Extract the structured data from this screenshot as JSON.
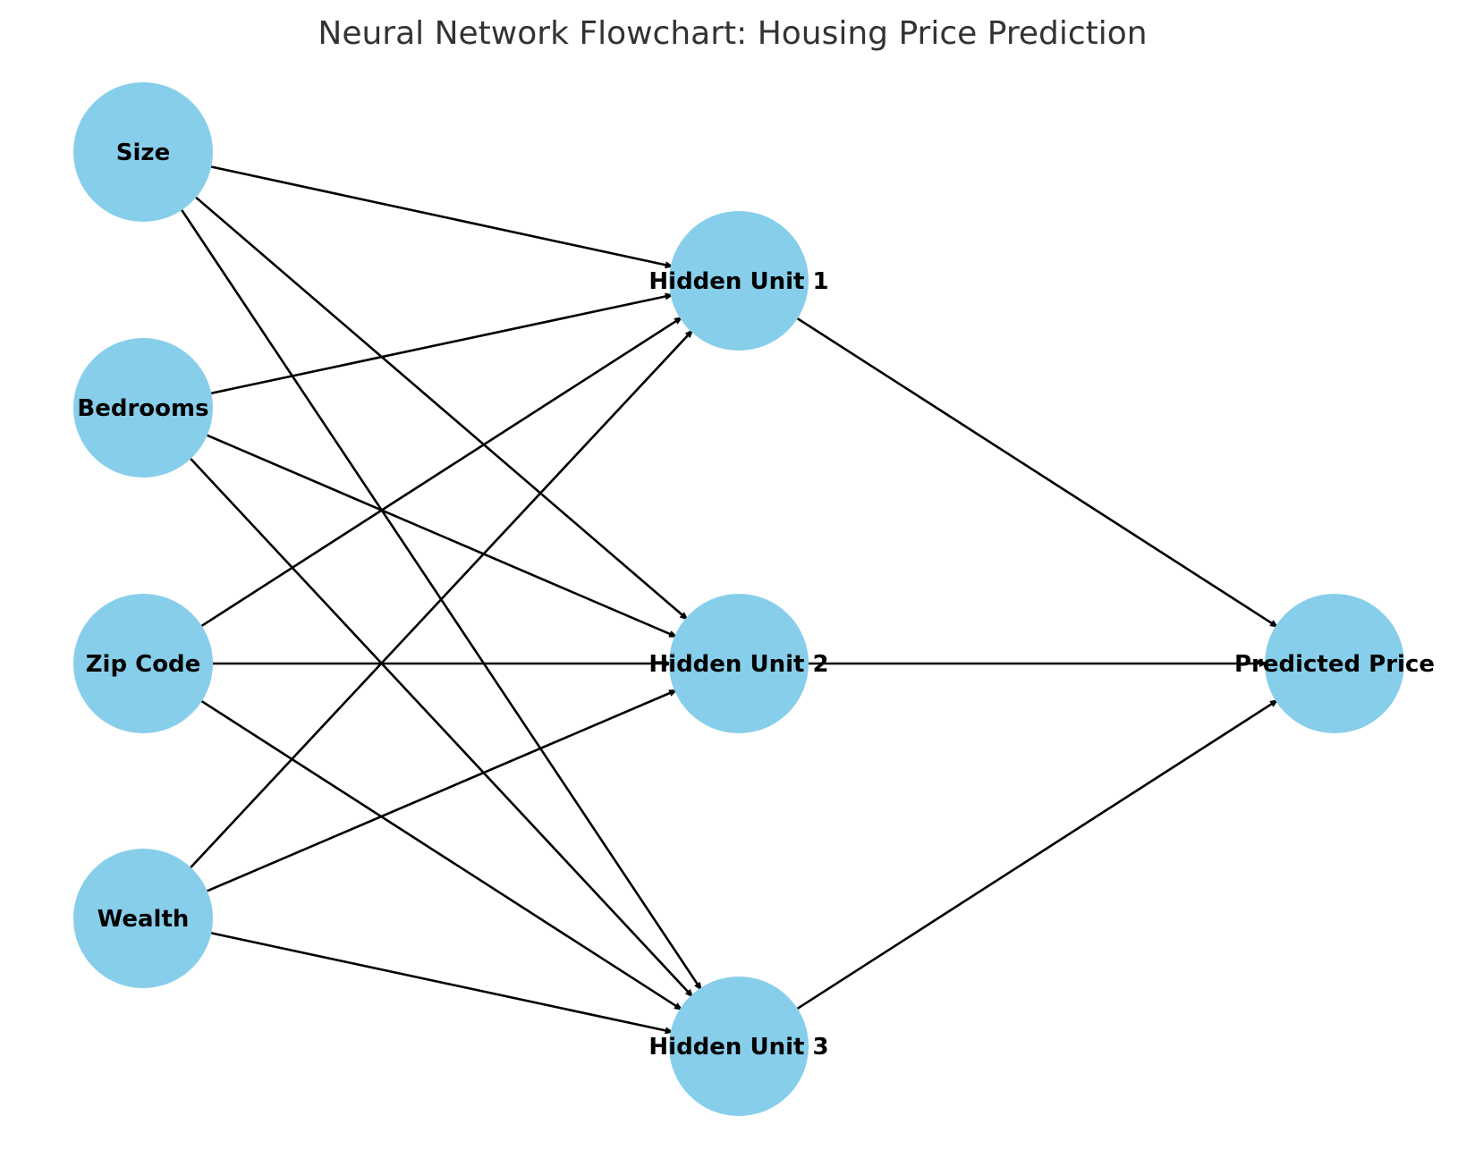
{
  "title": "Neural Network Flowchart: Housing Price Prediction",
  "colors": {
    "node_fill": "#87CEEB",
    "edge": "#000000",
    "title": "#333333",
    "label": "#000000",
    "background": "#FFFFFF"
  },
  "nodes": [
    {
      "id": "size",
      "label": "Size",
      "layer": "input"
    },
    {
      "id": "bedrooms",
      "label": "Bedrooms",
      "layer": "input"
    },
    {
      "id": "zip",
      "label": "Zip Code",
      "layer": "input"
    },
    {
      "id": "wealth",
      "label": "Wealth",
      "layer": "input"
    },
    {
      "id": "h1",
      "label": "Hidden Unit 1",
      "layer": "hidden"
    },
    {
      "id": "h2",
      "label": "Hidden Unit 2",
      "layer": "hidden"
    },
    {
      "id": "h3",
      "label": "Hidden Unit 3",
      "layer": "hidden"
    },
    {
      "id": "out",
      "label": "Predicted Price",
      "layer": "output"
    }
  ],
  "edges": [
    {
      "from": "size",
      "to": "h1"
    },
    {
      "from": "size",
      "to": "h2"
    },
    {
      "from": "size",
      "to": "h3"
    },
    {
      "from": "bedrooms",
      "to": "h1"
    },
    {
      "from": "bedrooms",
      "to": "h2"
    },
    {
      "from": "bedrooms",
      "to": "h3"
    },
    {
      "from": "zip",
      "to": "h1"
    },
    {
      "from": "zip",
      "to": "h2"
    },
    {
      "from": "zip",
      "to": "h3"
    },
    {
      "from": "wealth",
      "to": "h1"
    },
    {
      "from": "wealth",
      "to": "h2"
    },
    {
      "from": "wealth",
      "to": "h3"
    },
    {
      "from": "h1",
      "to": "out"
    },
    {
      "from": "h2",
      "to": "out"
    },
    {
      "from": "h3",
      "to": "out"
    }
  ]
}
